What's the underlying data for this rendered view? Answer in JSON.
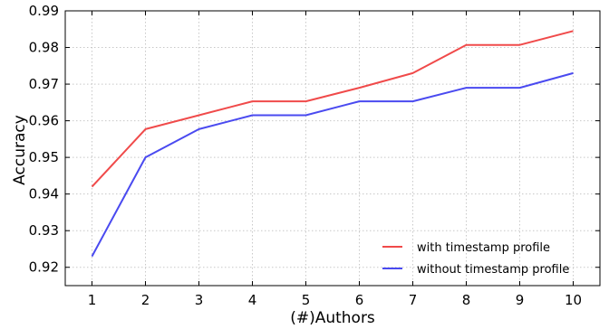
{
  "chart_data": {
    "type": "line",
    "title": "",
    "xlabel": "(#)Authors",
    "ylabel": "Accuracy",
    "x": [
      1,
      2,
      3,
      4,
      5,
      6,
      7,
      8,
      9,
      10
    ],
    "xlim": [
      0.5,
      10.5
    ],
    "ylim": [
      0.915,
      0.99
    ],
    "yticks": [
      0.92,
      0.93,
      0.94,
      0.95,
      0.96,
      0.97,
      0.98,
      0.99
    ],
    "ytick_labels": [
      "0.92",
      "0.93",
      "0.94",
      "0.95",
      "0.96",
      "0.97",
      "0.98",
      "0.99"
    ],
    "xtick_labels": [
      "1",
      "2",
      "3",
      "4",
      "5",
      "6",
      "7",
      "8",
      "9",
      "10"
    ],
    "grid": true,
    "legend_position": "bottom-right",
    "series": [
      {
        "name": "with timestamp profile",
        "color": "#f04a4a",
        "values": [
          0.942,
          0.9577,
          0.9615,
          0.9653,
          0.9653,
          0.969,
          0.973,
          0.9807,
          0.9807,
          0.9845
        ]
      },
      {
        "name": "without timestamp profile",
        "color": "#4a4af0",
        "values": [
          0.923,
          0.95,
          0.9577,
          0.9615,
          0.9615,
          0.9653,
          0.9653,
          0.969,
          0.969,
          0.973
        ]
      }
    ]
  }
}
